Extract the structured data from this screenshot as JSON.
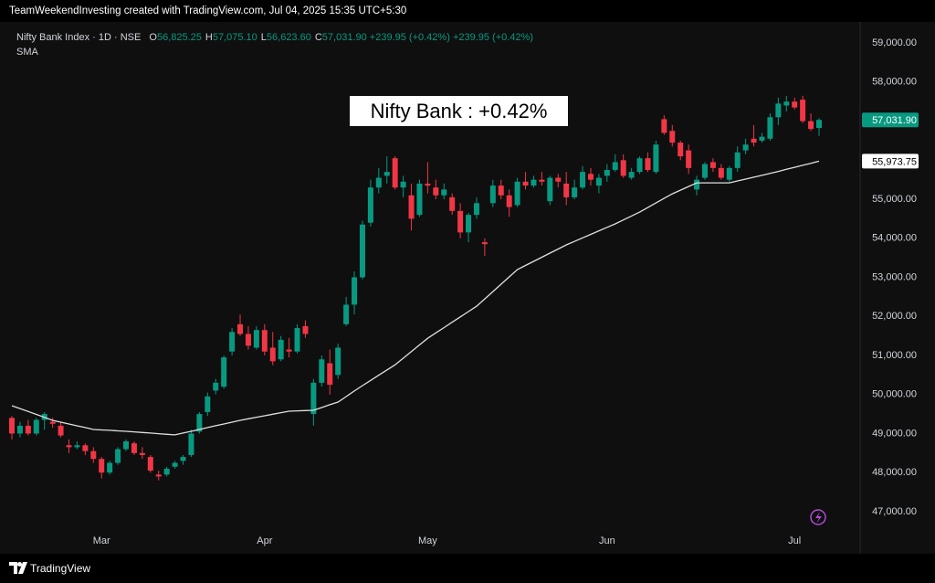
{
  "header": "TeamWeekendInvesting created with TradingView.com, Jul 04, 2025 15:35 UTC+5:30",
  "legend": {
    "symbol": "Nifty Bank Index · 1D · NSE",
    "ohlc": [
      {
        "key": "O",
        "value": "56,825.25"
      },
      {
        "key": "H",
        "value": "57,075.10"
      },
      {
        "key": "L",
        "value": "56,623.60"
      },
      {
        "key": "C",
        "value": "57,031.90"
      }
    ],
    "change": "+239.95 (+0.42%)",
    "change_2": "+239.95 (+0.42%)",
    "indicator": "SMA"
  },
  "footer": "TradingView",
  "chart_data": {
    "type": "candlestick",
    "title": "Nifty Bank : +0.42%",
    "up_color": "#089981",
    "down_color": "#f23645",
    "grid": false,
    "ylim": [
      46530,
      59400
    ],
    "yticks": [
      {
        "value": 47000,
        "label": "47,000.00"
      },
      {
        "value": 48000,
        "label": "48,000.00"
      },
      {
        "value": 49000,
        "label": "49,000.00"
      },
      {
        "value": 50000,
        "label": "50,000.00"
      },
      {
        "value": 51000,
        "label": "51,000.00"
      },
      {
        "value": 52000,
        "label": "52,000.00"
      },
      {
        "value": 53000,
        "label": "53,000.00"
      },
      {
        "value": 54000,
        "label": "54,000.00"
      },
      {
        "value": 55000,
        "label": "55,000.00"
      },
      {
        "value": 56000,
        "label": "56,000.00"
      },
      {
        "value": 57000,
        "label": "57,000.00"
      },
      {
        "value": 58000,
        "label": "58,000.00"
      },
      {
        "value": 59000,
        "label": "59,000.00"
      }
    ],
    "categories": [
      null,
      null,
      null,
      null,
      null,
      null,
      null,
      null,
      null,
      null,
      null,
      "Mar",
      null,
      null,
      null,
      null,
      null,
      null,
      null,
      null,
      null,
      null,
      null,
      null,
      null,
      null,
      null,
      null,
      null,
      null,
      null,
      "Apr",
      null,
      null,
      null,
      null,
      null,
      null,
      null,
      null,
      null,
      null,
      null,
      null,
      null,
      null,
      null,
      null,
      null,
      null,
      null,
      "May",
      null,
      null,
      null,
      null,
      null,
      null,
      null,
      null,
      null,
      null,
      null,
      null,
      null,
      null,
      null,
      null,
      null,
      null,
      null,
      null,
      null,
      "Jun",
      null,
      null,
      null,
      null,
      null,
      null,
      null,
      null,
      null,
      null,
      null,
      null,
      null,
      null,
      null,
      null,
      null,
      null,
      null,
      null,
      null,
      null,
      "Jul",
      null,
      null,
      null
    ],
    "open": [
      49400,
      49000,
      49200,
      49000,
      49350,
      49300,
      49200,
      48700,
      48650,
      48700,
      48550,
      48350,
      48000,
      48250,
      48600,
      48750,
      48500,
      48400,
      47950,
      47950,
      48150,
      48300,
      48450,
      49050,
      49550,
      50100,
      50200,
      51100,
      51800,
      51550,
      51200,
      51650,
      51200,
      50900,
      51150,
      51100,
      51750,
      49500,
      50300,
      50800,
      50500,
      51800,
      52300,
      53000,
      54400,
      55300,
      55600,
      56050,
      55300,
      55100,
      54600,
      55400,
      55300,
      55100,
      55050,
      54700,
      54150,
      54600,
      53900,
      54900,
      55350,
      55100,
      54850,
      55450,
      55350,
      55500,
      54950,
      55550,
      55400,
      55050,
      55300,
      55650,
      55350,
      55600,
      55750,
      56000,
      55550,
      55700,
      56050,
      55700,
      57050,
      56750,
      56450,
      56250,
      55250,
      55550,
      55950,
      55800,
      55500,
      55800,
      56250,
      56550,
      56500,
      56550,
      57100,
      57400,
      57500,
      57550,
      57000,
      56825.25
    ],
    "high": [
      49450,
      49300,
      49350,
      49400,
      49550,
      49400,
      49300,
      48850,
      48800,
      48750,
      48650,
      48400,
      48300,
      48650,
      48850,
      48800,
      48650,
      48450,
      48050,
      48150,
      48300,
      48450,
      49100,
      49550,
      50050,
      50400,
      51000,
      51700,
      52050,
      51750,
      51750,
      51800,
      51600,
      51500,
      51450,
      51800,
      51900,
      50400,
      51000,
      51150,
      51300,
      52500,
      53150,
      54450,
      55500,
      55800,
      56100,
      56100,
      55600,
      55400,
      55500,
      55950,
      55500,
      55400,
      55150,
      54900,
      54650,
      55050,
      54000,
      55500,
      55500,
      55250,
      55550,
      55700,
      55600,
      55700,
      55600,
      55650,
      55700,
      55500,
      55850,
      55800,
      55650,
      55900,
      56150,
      56150,
      55800,
      56100,
      56200,
      56500,
      57150,
      56900,
      56500,
      56400,
      55600,
      55950,
      56050,
      55900,
      55850,
      56350,
      56550,
      56900,
      56700,
      57200,
      57600,
      57650,
      57600,
      57650,
      57200,
      57075.1
    ],
    "low": [
      48850,
      48900,
      48950,
      48950,
      49100,
      49150,
      48900,
      48500,
      48600,
      48450,
      48250,
      47850,
      47950,
      48200,
      48550,
      48450,
      48350,
      48000,
      47800,
      47900,
      48100,
      48200,
      48400,
      49000,
      49450,
      50000,
      50150,
      51000,
      51500,
      51150,
      51150,
      51000,
      50750,
      50850,
      50950,
      51050,
      51450,
      49200,
      50200,
      50000,
      50400,
      51750,
      52050,
      52950,
      54300,
      55150,
      55400,
      55250,
      55050,
      54200,
      54550,
      55150,
      55000,
      55000,
      54600,
      54000,
      53900,
      54500,
      53550,
      54800,
      55000,
      54550,
      54800,
      55250,
      55300,
      55350,
      54850,
      55300,
      54850,
      55000,
      55250,
      55350,
      55150,
      55450,
      55700,
      55550,
      55500,
      55650,
      55700,
      55650,
      56650,
      56350,
      56000,
      55650,
      55100,
      55500,
      55700,
      55500,
      55450,
      55700,
      56150,
      56350,
      56450,
      56500,
      56900,
      57250,
      57300,
      56950,
      56750,
      56623.6
    ],
    "close": [
      49000,
      49200,
      49000,
      49350,
      49500,
      49250,
      48950,
      48650,
      48700,
      48550,
      48350,
      48000,
      48250,
      48600,
      48800,
      48500,
      48450,
      48050,
      47900,
      48100,
      48250,
      48400,
      49000,
      49500,
      49950,
      50300,
      50950,
      51600,
      51550,
      51250,
      51650,
      51100,
      50850,
      51400,
      51100,
      51700,
      51550,
      50300,
      50900,
      50250,
      51200,
      52300,
      53000,
      54350,
      55300,
      55550,
      55700,
      55300,
      55450,
      54500,
      55400,
      55350,
      55100,
      55250,
      54700,
      54150,
      54600,
      54900,
      53850,
      55350,
      55100,
      54800,
      55450,
      55350,
      55500,
      55450,
      55550,
      55450,
      55050,
      55300,
      55700,
      55500,
      55550,
      55750,
      55950,
      55600,
      55700,
      56050,
      55750,
      56400,
      56700,
      56450,
      56100,
      55800,
      55500,
      55900,
      55800,
      55550,
      55800,
      56200,
      56400,
      56450,
      56600,
      57100,
      57450,
      57500,
      57350,
      57000,
      56800,
      57031.9
    ],
    "series": [
      {
        "name": "SMA",
        "color": "#e0e0e0",
        "values": [
          49713,
          49640,
          49565,
          49490,
          49415,
          49339,
          49292,
          49245,
          49198,
          49152,
          49105,
          49093,
          49082,
          49070,
          49058,
          49043,
          49027,
          49012,
          48996,
          48980,
          48965,
          49012,
          49058,
          49105,
          49152,
          49199,
          49245,
          49292,
          49339,
          49378,
          49417,
          49456,
          49495,
          49534,
          49573,
          49581,
          49588,
          49596,
          49666,
          49737,
          49807,
          49947,
          50088,
          50228,
          50361,
          50494,
          50627,
          50760,
          50930,
          51100,
          51270,
          51440,
          51577,
          51713,
          51850,
          51987,
          52123,
          52260,
          52448,
          52636,
          52824,
          53012,
          53200,
          53305,
          53410,
          53515,
          53620,
          53725,
          53830,
          53920,
          54010,
          54100,
          54190,
          54280,
          54370,
          54470,
          54570,
          54670,
          54788,
          54905,
          55023,
          55140,
          55233,
          55327,
          55420,
          55420,
          55420,
          55420,
          55420,
          55468,
          55516,
          55564,
          55612,
          55660,
          55712,
          55765,
          55817,
          55869,
          55921,
          55973.75
        ]
      }
    ],
    "price_tags": [
      {
        "value": 57031.9,
        "label": "57,031.90",
        "color": "#089981",
        "text_color": "#ffffff"
      },
      {
        "value": 55973.75,
        "label": "55,973.75",
        "color": "#ffffff",
        "text_color": "#000000"
      }
    ]
  }
}
